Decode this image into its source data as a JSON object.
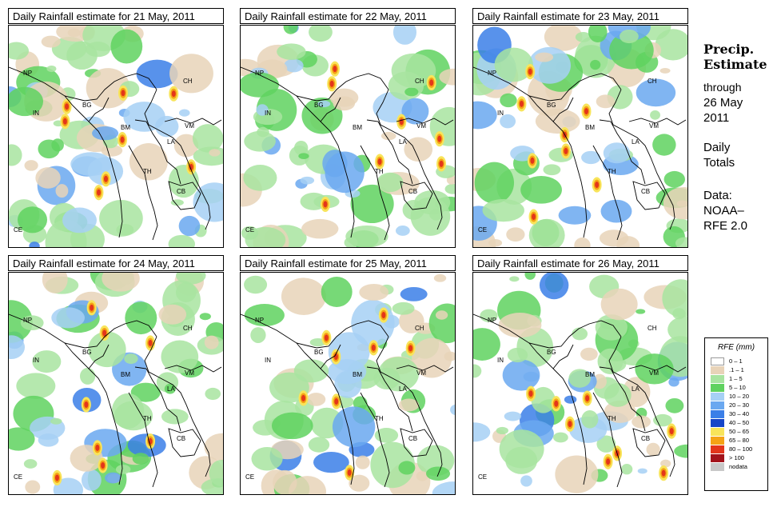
{
  "panels": [
    {
      "title": "Daily Rainfall estimate for  21 May, 2011",
      "variant": 0
    },
    {
      "title": "Daily Rainfall estimate for  22 May, 2011",
      "variant": 1
    },
    {
      "title": "Daily Rainfall estimate for  23 May, 2011",
      "variant": 2
    },
    {
      "title": "Daily Rainfall estimate for  24 May, 2011",
      "variant": 3
    },
    {
      "title": "Daily Rainfall estimate for  25 May, 2011",
      "variant": 4
    },
    {
      "title": "Daily Rainfall estimate for  26 May, 2011",
      "variant": 5
    }
  ],
  "country_labels": [
    "NP",
    "IN",
    "BG",
    "BM",
    "CH",
    "VM",
    "LA",
    "TH",
    "CB",
    "CE"
  ],
  "sidebar": {
    "title_line1": "Precip.",
    "title_line2": "Estimate",
    "through": "through",
    "date_line1": "26 May",
    "date_line2": "2011",
    "daily1": "Daily",
    "daily2": "Totals",
    "data1": "Data:",
    "data2": "NOAA–",
    "data3": "RFE 2.0"
  },
  "legend": {
    "title": "RFE (mm)",
    "items": [
      {
        "label": "0 – 1",
        "color": "#ffffff"
      },
      {
        "label": ".1 – 1",
        "color": "#e8d3b8"
      },
      {
        "label": "1 – 5",
        "color": "#a8e4a0"
      },
      {
        "label": "5 – 10",
        "color": "#5fd25f"
      },
      {
        "label": "10 – 20",
        "color": "#a6d0f5"
      },
      {
        "label": "20 – 30",
        "color": "#6aa8f0"
      },
      {
        "label": "30 – 40",
        "color": "#3b7fe8"
      },
      {
        "label": "40 – 50",
        "color": "#1746c8"
      },
      {
        "label": "50 – 65",
        "color": "#f8e45a"
      },
      {
        "label": "65 – 80",
        "color": "#f5a316"
      },
      {
        "label": "80 – 100",
        "color": "#e3361b"
      },
      {
        "label": "> 100",
        "color": "#a3131b"
      },
      {
        "label": "nodata",
        "color": "#c8c8c8"
      }
    ]
  }
}
